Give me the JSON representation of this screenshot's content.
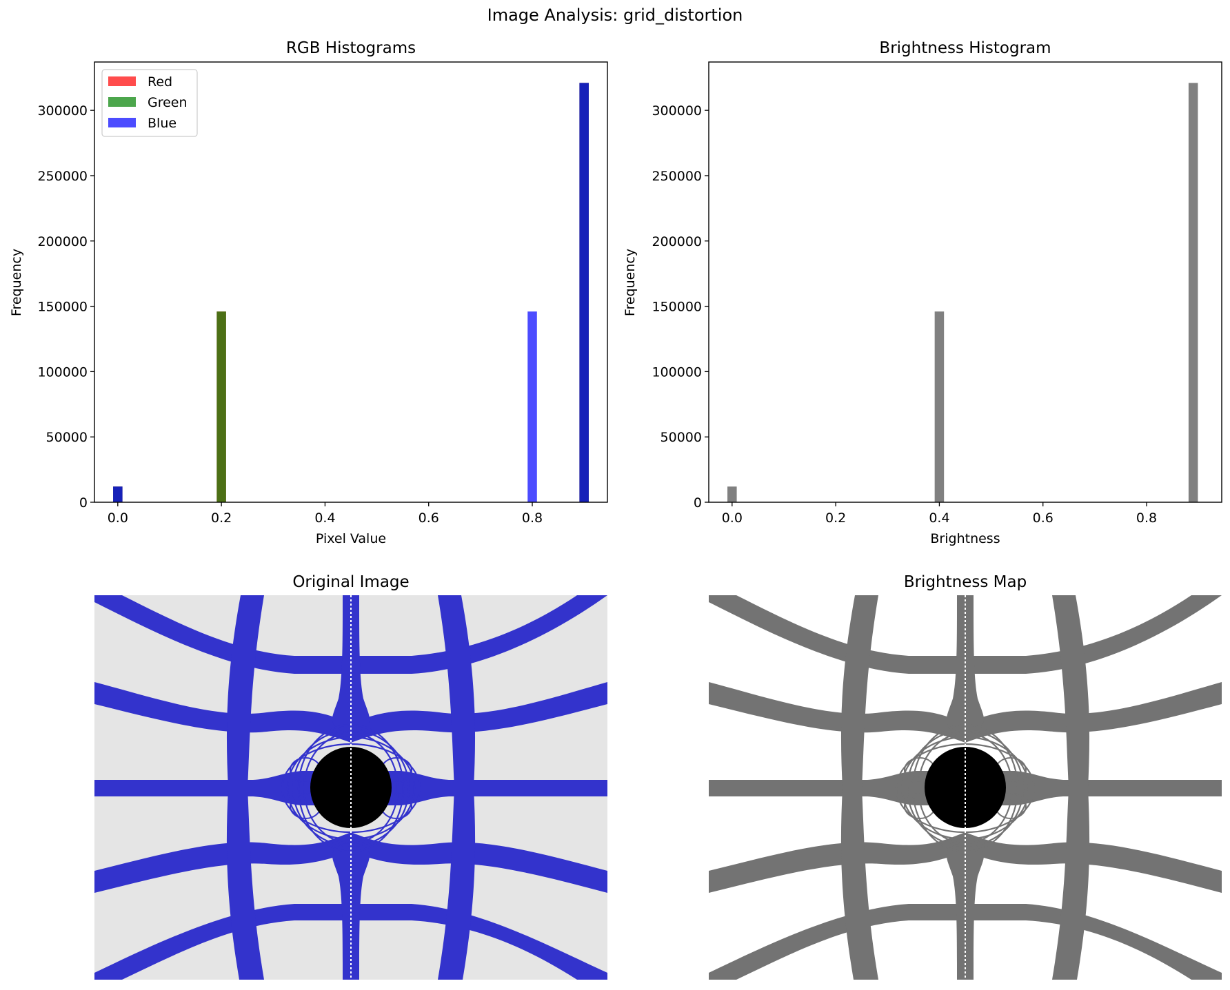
{
  "figure": {
    "suptitle": "Image Analysis: grid_distortion"
  },
  "colors": {
    "red": "#ff0000",
    "green": "#008000",
    "blue": "#0000ff",
    "overlap_green": "#4b721d",
    "overlap_blue": "#1a20bd",
    "gray": "#808080",
    "image_background": "#e5e5e5",
    "image_lines": "#3333cc",
    "map_background": "#ffffff",
    "map_lines": "#737373"
  },
  "chart_data": [
    {
      "type": "bar",
      "panel": "rgb_histograms",
      "title": "RGB Histograms",
      "xlabel": "Pixel Value",
      "ylabel": "Frequency",
      "xlim": [
        -0.045,
        0.945
      ],
      "ylim": [
        0,
        337000
      ],
      "xticks": [
        0.0,
        0.2,
        0.4,
        0.6,
        0.8
      ],
      "xtick_labels": [
        "0.0",
        "0.2",
        "0.4",
        "0.6",
        "0.8"
      ],
      "yticks": [
        0,
        50000,
        100000,
        150000,
        200000,
        250000,
        300000
      ],
      "ytick_labels": [
        "0",
        "50000",
        "100000",
        "150000",
        "200000",
        "250000",
        "300000"
      ],
      "bin_width": 0.018,
      "alpha": 0.7,
      "legend": {
        "placement": "upper-left",
        "entries": [
          "Red",
          "Green",
          "Blue"
        ]
      },
      "series": [
        {
          "name": "Red",
          "color": "#ff0000",
          "bins": [
            {
              "x": 0.0,
              "value": 12000
            },
            {
              "x": 0.2,
              "value": 146000
            },
            {
              "x": 0.9,
              "value": 321000
            }
          ]
        },
        {
          "name": "Green",
          "color": "#008000",
          "bins": [
            {
              "x": 0.0,
              "value": 12000
            },
            {
              "x": 0.2,
              "value": 146000
            },
            {
              "x": 0.9,
              "value": 321000
            }
          ]
        },
        {
          "name": "Blue",
          "color": "#0000ff",
          "bins": [
            {
              "x": 0.0,
              "value": 12000
            },
            {
              "x": 0.8,
              "value": 146000
            },
            {
              "x": 0.9,
              "value": 321000
            }
          ]
        }
      ]
    },
    {
      "type": "bar",
      "panel": "brightness_histogram",
      "title": "Brightness Histogram",
      "xlabel": "Brightness",
      "ylabel": "Frequency",
      "xlim": [
        -0.045,
        0.945
      ],
      "ylim": [
        0,
        337000
      ],
      "xticks": [
        0.0,
        0.2,
        0.4,
        0.6,
        0.8
      ],
      "xtick_labels": [
        "0.0",
        "0.2",
        "0.4",
        "0.6",
        "0.8"
      ],
      "yticks": [
        0,
        50000,
        100000,
        150000,
        200000,
        250000,
        300000
      ],
      "ytick_labels": [
        "0",
        "50000",
        "100000",
        "150000",
        "200000",
        "250000",
        "300000"
      ],
      "bin_width": 0.018,
      "series": [
        {
          "color": "#808080",
          "bins": [
            {
              "x": 0.0,
              "value": 12000
            },
            {
              "x": 0.4,
              "value": 146000
            },
            {
              "x": 0.89,
              "value": 321000
            }
          ]
        }
      ]
    }
  ],
  "images": [
    {
      "panel": "original_image",
      "title": "Original Image",
      "background": "#e5e5e5",
      "line_color": "#3333cc"
    },
    {
      "panel": "brightness_map",
      "title": "Brightness Map",
      "background": "#ffffff",
      "line_color": "#737373"
    }
  ]
}
